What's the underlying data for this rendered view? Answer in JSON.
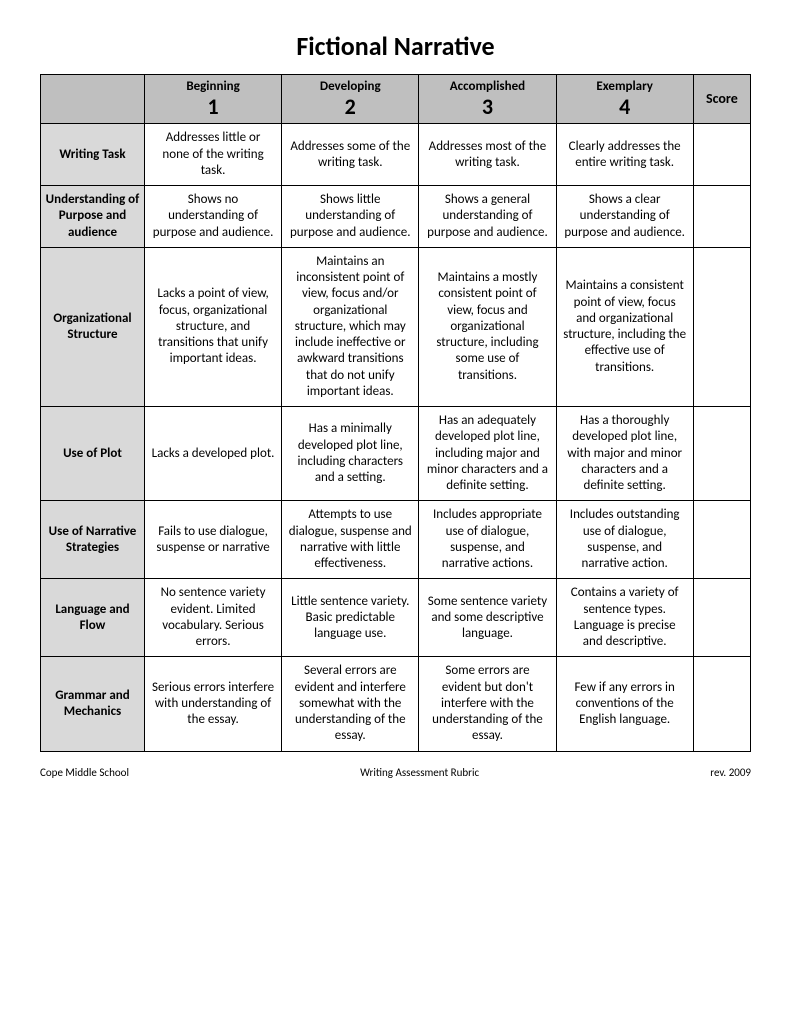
{
  "title": "Fictional Narrative",
  "colors": {
    "header_bg": "#bfbfbf",
    "rowheader_bg": "#d9d9d9",
    "border": "#000000",
    "page_bg": "#ffffff"
  },
  "table": {
    "score_label": "Score",
    "levels": [
      {
        "name": "Beginning",
        "num": "1"
      },
      {
        "name": "Developing",
        "num": "2"
      },
      {
        "name": "Accomplished",
        "num": "3"
      },
      {
        "name": "Exemplary",
        "num": "4"
      }
    ],
    "rows": [
      {
        "label": "Writing Task",
        "cells": [
          "Addresses little or none of the writing task.",
          "Addresses some of the writing task.",
          "Addresses most of the writing task.",
          "Clearly addresses the entire writing task."
        ]
      },
      {
        "label": "Understanding of Purpose and audience",
        "cells": [
          "Shows no understanding of purpose and audience.",
          "Shows little understanding of purpose and audience.",
          "Shows a general understanding of purpose and audience.",
          "Shows a clear understanding of purpose and audience."
        ]
      },
      {
        "label": "Organizational Structure",
        "cells": [
          "Lacks a point of view, focus, organizational structure, and transitions that unify important ideas.",
          "Maintains an inconsistent point of view, focus and/or organizational structure, which may include ineffective or awkward transitions that do not unify important ideas.",
          "Maintains a mostly consistent point of view, focus and organizational structure, including some use of transitions.",
          "Maintains a consistent point of view, focus and organizational structure, including the effective use of transitions."
        ]
      },
      {
        "label": "Use of Plot",
        "cells": [
          "Lacks a developed plot.",
          "Has a minimally developed plot line, including characters and a setting.",
          "Has an adequately developed plot line, including major and minor characters and a definite setting.",
          "Has a thoroughly developed plot line, with major and minor characters and a definite setting."
        ]
      },
      {
        "label": "Use of Narrative Strategies",
        "cells": [
          "Fails to use dialogue, suspense or narrative",
          "Attempts to use dialogue, suspense and narrative with little effectiveness.",
          "Includes appropriate use of dialogue, suspense, and narrative actions.",
          "Includes outstanding use of dialogue, suspense, and narrative action."
        ]
      },
      {
        "label": "Language and Flow",
        "cells": [
          "No sentence variety evident.  Limited vocabulary.  Serious errors.",
          "Little sentence variety.  Basic predictable language use.",
          "Some sentence variety and some descriptive language.",
          "Contains a variety of sentence types.  Language is precise and descriptive."
        ]
      },
      {
        "label": "Grammar and Mechanics",
        "cells": [
          "Serious errors interfere with understanding of the essay.",
          "Several errors are evident and interfere somewhat with the understanding of the essay.",
          "Some errors are evident but don't interfere with the understanding of the essay.",
          "Few if any errors in conventions of the English language."
        ]
      }
    ]
  },
  "footer": {
    "left": "Cope Middle School",
    "center": "Writing Assessment Rubric",
    "right": "rev. 2009"
  }
}
